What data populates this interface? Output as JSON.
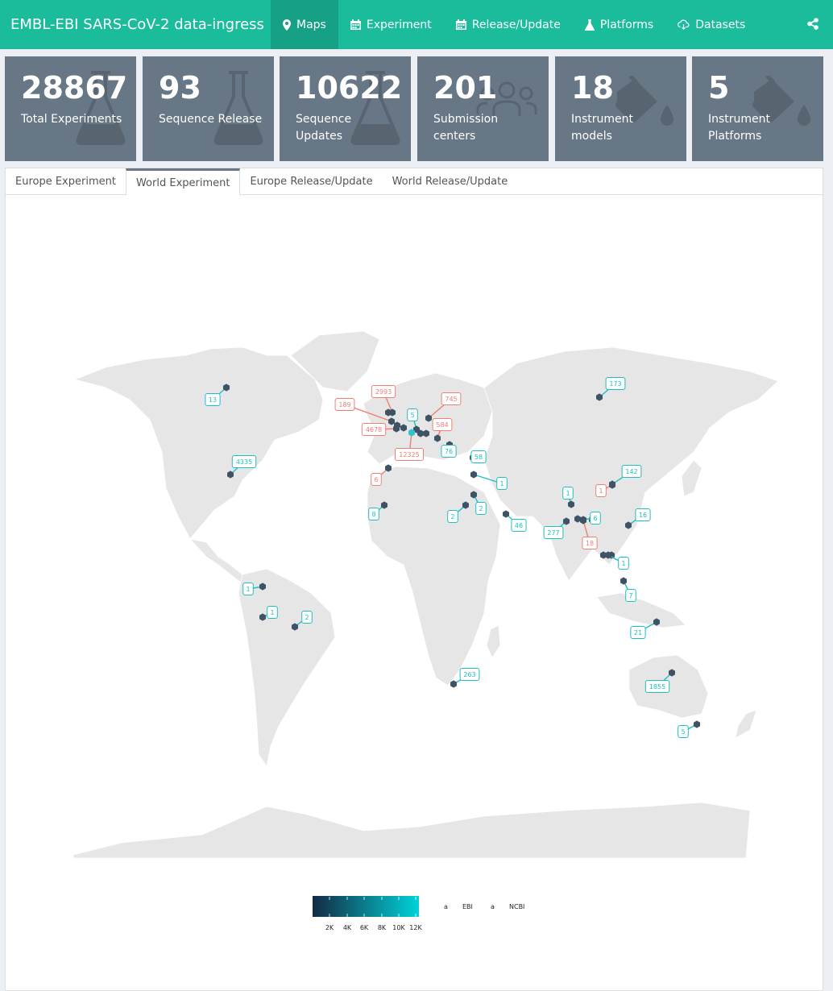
{
  "navbar": {
    "brand": "EMBL-EBI SARS-CoV-2 data-ingress",
    "items": [
      {
        "label": "Maps",
        "icon": "map-marker-icon",
        "active": true
      },
      {
        "label": "Experiment",
        "icon": "calendar-icon"
      },
      {
        "label": "Release/Update",
        "icon": "calendar-icon"
      },
      {
        "label": "Platforms",
        "icon": "flask-icon"
      },
      {
        "label": "Datasets",
        "icon": "cloud-download-icon"
      }
    ],
    "share_icon": "share-icon"
  },
  "value_boxes": [
    {
      "value": "28867",
      "label": "Total Experiments",
      "icon": "flask-icon"
    },
    {
      "value": "93",
      "label": "Sequence Release",
      "icon": "flask-icon"
    },
    {
      "value": "10622",
      "label": "Sequence Updates",
      "icon": "flask-icon"
    },
    {
      "value": "201",
      "label": "Submission centers",
      "icon": "users-icon"
    },
    {
      "value": "18",
      "label": "Instrument models",
      "icon": "fill-drip-icon"
    },
    {
      "value": "5",
      "label": "Instrument Platforms",
      "icon": "fill-drip-icon"
    }
  ],
  "tabs": [
    {
      "label": "Europe Experiment"
    },
    {
      "label": "World Experiment",
      "active": true
    },
    {
      "label": "Europe Release/Update"
    },
    {
      "label": "World Release/Update"
    }
  ],
  "map": {
    "colors": {
      "land": "#e6e6e6",
      "ebi": "#f07e73",
      "ncbi": "#1fbfc0",
      "dark": "#132b43"
    },
    "markers": [
      {
        "value": "13",
        "src": "NCBI"
      },
      {
        "value": "4335",
        "src": "NCBI"
      },
      {
        "value": "173",
        "src": "NCBI"
      },
      {
        "value": "2993",
        "src": "EBI"
      },
      {
        "value": "189",
        "src": "EBI"
      },
      {
        "value": "745",
        "src": "EBI"
      },
      {
        "value": "5",
        "src": "NCBI"
      },
      {
        "value": "584",
        "src": "EBI"
      },
      {
        "value": "4678",
        "src": "EBI"
      },
      {
        "value": "12325",
        "src": "EBI"
      },
      {
        "value": "76",
        "src": "NCBI"
      },
      {
        "value": "58",
        "src": "NCBI"
      },
      {
        "value": "6",
        "src": "EBI"
      },
      {
        "value": "1",
        "src": "NCBI"
      },
      {
        "value": "142",
        "src": "NCBI"
      },
      {
        "value": "1",
        "src": "EBI"
      },
      {
        "value": "8",
        "src": "NCBI"
      },
      {
        "value": "2",
        "src": "NCBI"
      },
      {
        "value": "2",
        "src": "NCBI"
      },
      {
        "value": "46",
        "src": "NCBI"
      },
      {
        "value": "1",
        "src": "NCBI"
      },
      {
        "value": "6",
        "src": "NCBI"
      },
      {
        "value": "16",
        "src": "NCBI"
      },
      {
        "value": "277",
        "src": "NCBI"
      },
      {
        "value": "18",
        "src": "EBI"
      },
      {
        "value": "1",
        "src": "NCBI"
      },
      {
        "value": "7",
        "src": "NCBI"
      },
      {
        "value": "1",
        "src": "NCBI"
      },
      {
        "value": "1",
        "src": "NCBI"
      },
      {
        "value": "2",
        "src": "NCBI"
      },
      {
        "value": "21",
        "src": "NCBI"
      },
      {
        "value": "263",
        "src": "NCBI"
      },
      {
        "value": "1855",
        "src": "NCBI"
      },
      {
        "value": "5",
        "src": "NCBI"
      }
    ],
    "legend": {
      "ticks": [
        "2K",
        "4K",
        "6K",
        "8K",
        "10K",
        "12K"
      ],
      "key_glyph": "a",
      "ebi_label": "EBI",
      "ncbi_label": "NCBI"
    }
  }
}
